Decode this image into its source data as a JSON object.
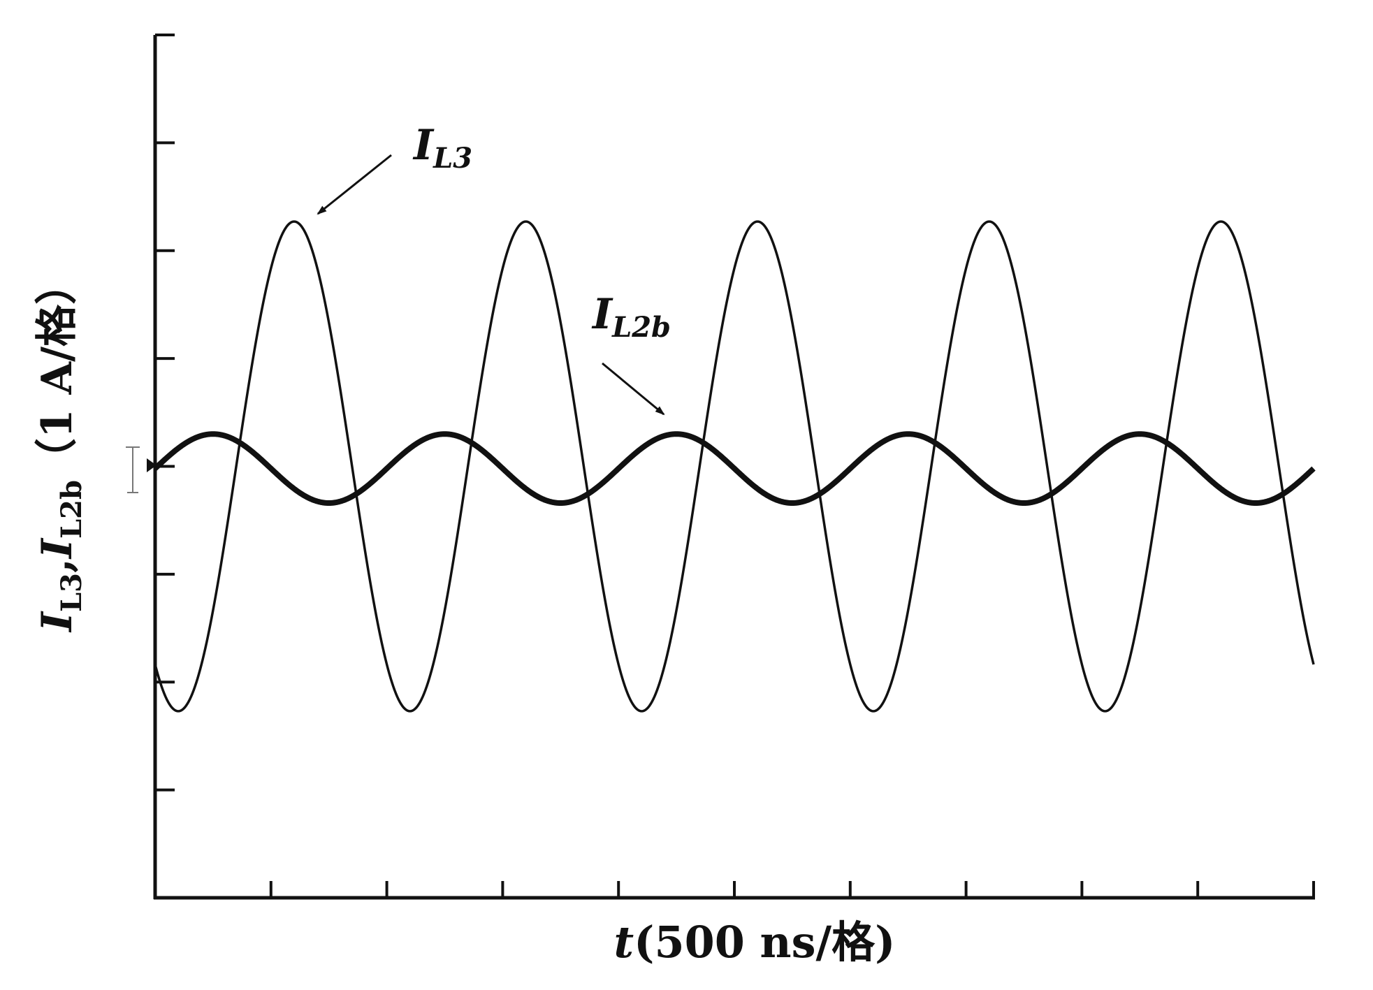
{
  "chart_data": {
    "type": "line",
    "title": "",
    "xlabel": {
      "var": "t",
      "unit": "(500 ns/格)"
    },
    "ylabel": {
      "var1": "I",
      "sub1": "L3",
      "sep": ",",
      "var2": "I",
      "sub2": "L2b",
      "unit": "（1 A/格）"
    },
    "x_divisions": 10,
    "y_divisions": 8,
    "xlim": [
      0,
      10
    ],
    "ylim": [
      -4,
      4
    ],
    "grid": false,
    "series": [
      {
        "name": "I_L3",
        "label_var": "I",
        "label_sub": "L3",
        "amplitude": 2.27,
        "offset": 0,
        "period_div": 2.0,
        "first_peak_div": 1.2,
        "stroke": "#111111",
        "stroke_width": 3.5
      },
      {
        "name": "I_L2b",
        "label_var": "I",
        "label_sub": "L2b",
        "amplitude": 0.32,
        "offset": -0.02,
        "period_div": 2.0,
        "first_peak_div": 0.5,
        "stroke": "#111111",
        "stroke_width": 8
      }
    ],
    "annotations": [
      {
        "series": "I_L3"
      },
      {
        "series": "I_L2b"
      }
    ]
  }
}
